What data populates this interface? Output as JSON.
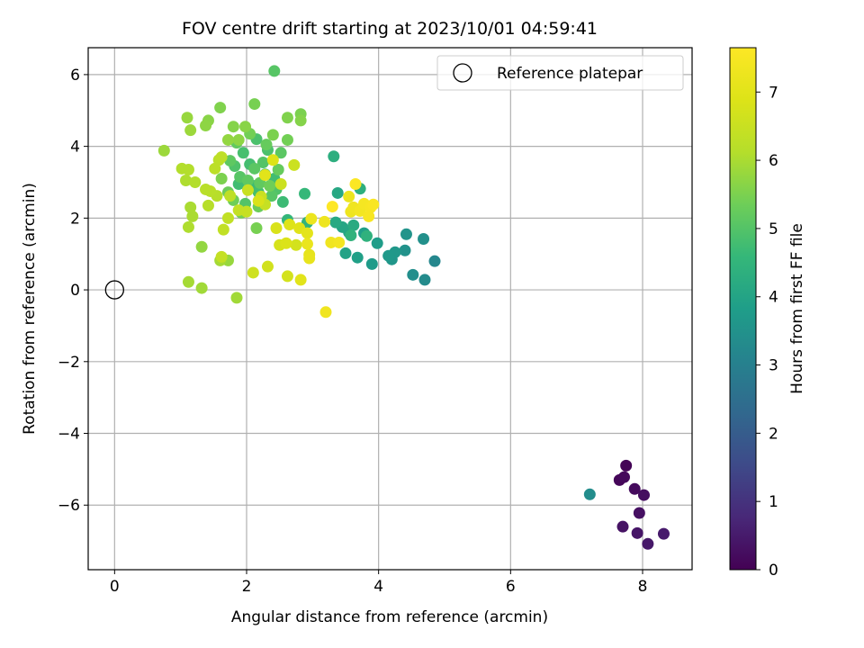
{
  "chart_data": {
    "type": "scatter",
    "title": "FOV centre drift starting at 2023/10/01 04:59:41",
    "xlabel": "Angular distance from reference (arcmin)",
    "ylabel": "Rotation from reference (arcmin)",
    "xlim": [
      -0.4,
      8.75
    ],
    "ylim": [
      -7.8,
      6.75
    ],
    "xticks": [
      0,
      2,
      4,
      6,
      8
    ],
    "yticks": [
      -6,
      -4,
      -2,
      0,
      2,
      4,
      6
    ],
    "xtick_labels": [
      "0",
      "2",
      "4",
      "6",
      "8"
    ],
    "ytick_labels": [
      "−6",
      "−4",
      "−2",
      "0",
      "2",
      "4",
      "6"
    ],
    "grid": true,
    "legend": {
      "position": "top-right",
      "entries": [
        "Reference platepar"
      ]
    },
    "colorbar": {
      "label": "Hours from first FF file",
      "colormap": "viridis",
      "range": [
        0,
        7.65
      ],
      "ticks": [
        0,
        1,
        2,
        3,
        4,
        5,
        6,
        7
      ],
      "tick_labels": [
        "0",
        "1",
        "2",
        "3",
        "4",
        "5",
        "6",
        "7"
      ]
    },
    "series": [
      {
        "name": "Reference platepar",
        "marker": "open-circle",
        "points": [
          [
            0,
            0
          ]
        ]
      },
      {
        "marker": "filled-circle",
        "colored_by": "Hours from first FF file",
        "points": [
          [
            7.75,
            -4.9,
            0.05
          ],
          [
            7.65,
            -5.3,
            0.1
          ],
          [
            7.72,
            -5.22,
            0.15
          ],
          [
            7.88,
            -5.55,
            0.2
          ],
          [
            8.02,
            -5.72,
            0.25
          ],
          [
            7.95,
            -6.22,
            0.3
          ],
          [
            7.7,
            -6.6,
            0.35
          ],
          [
            7.92,
            -6.78,
            0.4
          ],
          [
            8.08,
            -7.08,
            0.45
          ],
          [
            8.32,
            -6.8,
            0.5
          ],
          [
            7.2,
            -5.7,
            3.35
          ],
          [
            4.85,
            0.8,
            3.2
          ],
          [
            4.7,
            0.28,
            3.3
          ],
          [
            4.52,
            0.42,
            3.4
          ],
          [
            4.68,
            1.42,
            3.45
          ],
          [
            4.4,
            1.1,
            3.5
          ],
          [
            4.42,
            1.55,
            3.55
          ],
          [
            4.2,
            0.85,
            3.6
          ],
          [
            4.25,
            1.05,
            3.65
          ],
          [
            4.15,
            0.95,
            3.7
          ],
          [
            3.9,
            0.72,
            3.75
          ],
          [
            3.98,
            1.3,
            3.8
          ],
          [
            3.78,
            1.58,
            3.85
          ],
          [
            3.68,
            0.9,
            3.9
          ],
          [
            3.5,
            1.02,
            3.95
          ],
          [
            3.55,
            1.6,
            4.0
          ],
          [
            3.45,
            1.75,
            4.05
          ],
          [
            3.38,
            2.7,
            4.1
          ],
          [
            3.35,
            1.88,
            4.15
          ],
          [
            3.62,
            1.8,
            4.2
          ],
          [
            3.32,
            3.72,
            4.3
          ],
          [
            3.72,
            2.82,
            4.35
          ],
          [
            3.82,
            1.5,
            4.4
          ],
          [
            3.58,
            1.52,
            4.45
          ],
          [
            2.92,
            1.88,
            4.45
          ],
          [
            2.62,
            1.95,
            4.55
          ],
          [
            2.88,
            2.68,
            4.6
          ],
          [
            2.22,
            2.55,
            4.65
          ],
          [
            2.55,
            2.45,
            4.7
          ],
          [
            2.1,
            2.9,
            4.7
          ],
          [
            1.88,
            2.95,
            4.75
          ],
          [
            2.42,
            3.1,
            4.75
          ],
          [
            2.18,
            2.72,
            4.8
          ],
          [
            2.05,
            3.5,
            4.8
          ],
          [
            2.28,
            3.22,
            4.85
          ],
          [
            1.95,
            3.82,
            4.85
          ],
          [
            2.32,
            3.9,
            4.9
          ],
          [
            2.15,
            4.2,
            4.9
          ],
          [
            1.82,
            3.45,
            4.95
          ],
          [
            2.45,
            2.8,
            4.95
          ],
          [
            2.25,
            3.55,
            5.0
          ],
          [
            1.98,
            2.4,
            5.0
          ],
          [
            2.38,
            2.62,
            5.05
          ],
          [
            1.9,
            3.15,
            5.05
          ],
          [
            2.12,
            3.38,
            5.1
          ],
          [
            2.52,
            3.82,
            5.1
          ],
          [
            1.75,
            3.6,
            5.15
          ],
          [
            2.02,
            3.05,
            5.15
          ],
          [
            2.2,
            2.98,
            5.2
          ],
          [
            1.85,
            4.1,
            5.2
          ],
          [
            2.48,
            3.35,
            5.25
          ],
          [
            2.3,
            4.05,
            5.25
          ],
          [
            1.72,
            2.72,
            5.3
          ],
          [
            2.18,
            2.32,
            5.3
          ],
          [
            1.8,
            2.5,
            5.35
          ],
          [
            2.35,
            2.9,
            5.35
          ],
          [
            2.62,
            4.18,
            5.4
          ],
          [
            2.05,
            4.35,
            5.4
          ],
          [
            1.92,
            2.15,
            5.45
          ],
          [
            2.15,
            1.72,
            5.45
          ],
          [
            2.4,
            4.32,
            5.5
          ],
          [
            1.62,
            3.1,
            5.5
          ],
          [
            2.42,
            6.1,
            5.05
          ],
          [
            2.12,
            5.18,
            5.45
          ],
          [
            2.82,
            4.9,
            5.5
          ],
          [
            1.6,
            5.08,
            5.55
          ],
          [
            2.62,
            4.8,
            5.55
          ],
          [
            2.82,
            4.72,
            5.6
          ],
          [
            1.8,
            4.55,
            5.6
          ],
          [
            1.98,
            4.55,
            5.65
          ],
          [
            1.42,
            4.72,
            5.65
          ],
          [
            1.38,
            4.58,
            5.7
          ],
          [
            1.88,
            4.18,
            5.7
          ],
          [
            1.72,
            4.18,
            5.75
          ],
          [
            1.32,
            1.2,
            5.75
          ],
          [
            1.72,
            0.82,
            5.8
          ],
          [
            1.1,
            4.8,
            5.8
          ],
          [
            1.15,
            4.45,
            5.85
          ],
          [
            0.75,
            3.88,
            5.85
          ],
          [
            1.32,
            0.05,
            5.9
          ],
          [
            1.85,
            -0.22,
            5.9
          ],
          [
            1.12,
            0.22,
            5.95
          ],
          [
            1.6,
            0.82,
            5.95
          ],
          [
            1.18,
            2.05,
            6.0
          ],
          [
            1.15,
            2.3,
            6.0
          ],
          [
            1.12,
            1.75,
            6.05
          ],
          [
            1.08,
            3.05,
            6.05
          ],
          [
            1.02,
            3.38,
            6.1
          ],
          [
            1.12,
            3.35,
            6.1
          ],
          [
            1.22,
            3.0,
            6.1
          ],
          [
            1.42,
            2.35,
            6.15
          ],
          [
            1.55,
            2.62,
            6.15
          ],
          [
            1.45,
            2.75,
            6.2
          ],
          [
            1.38,
            2.8,
            6.2
          ],
          [
            1.52,
            3.38,
            6.25
          ],
          [
            1.58,
            3.62,
            6.25
          ],
          [
            1.62,
            3.7,
            6.3
          ],
          [
            1.75,
            2.62,
            6.3
          ],
          [
            1.72,
            2.0,
            6.35
          ],
          [
            1.65,
            1.68,
            6.35
          ],
          [
            1.62,
            0.92,
            6.4
          ],
          [
            1.88,
            2.22,
            6.4
          ],
          [
            2.0,
            2.18,
            6.45
          ],
          [
            2.28,
            2.38,
            6.45
          ],
          [
            2.02,
            2.78,
            6.5
          ],
          [
            2.22,
            2.6,
            6.5
          ],
          [
            2.52,
            2.95,
            6.55
          ],
          [
            2.72,
            3.48,
            6.55
          ],
          [
            2.1,
            0.48,
            6.6
          ],
          [
            2.32,
            0.65,
            6.65
          ],
          [
            2.62,
            0.38,
            6.7
          ],
          [
            2.75,
            1.25,
            6.7
          ],
          [
            2.5,
            1.25,
            6.75
          ],
          [
            2.45,
            1.72,
            6.8
          ],
          [
            2.6,
            1.3,
            6.85
          ],
          [
            2.65,
            1.82,
            6.9
          ],
          [
            2.8,
            1.72,
            6.95
          ],
          [
            2.82,
            0.28,
            7.0
          ],
          [
            2.92,
            1.58,
            7.05
          ],
          [
            2.95,
            0.98,
            7.1
          ],
          [
            2.95,
            0.88,
            7.15
          ],
          [
            2.92,
            1.28,
            7.2
          ],
          [
            2.98,
            1.98,
            7.25
          ],
          [
            3.18,
            1.9,
            7.3
          ],
          [
            3.2,
            -0.62,
            7.35
          ],
          [
            3.28,
            1.32,
            7.35
          ],
          [
            3.4,
            1.32,
            7.4
          ],
          [
            3.55,
            2.6,
            7.25
          ],
          [
            3.58,
            2.18,
            7.3
          ],
          [
            3.62,
            2.3,
            7.35
          ],
          [
            3.72,
            2.2,
            7.4
          ],
          [
            3.78,
            2.4,
            7.45
          ],
          [
            3.85,
            2.05,
            7.5
          ],
          [
            3.88,
            2.3,
            7.5
          ],
          [
            3.92,
            2.38,
            7.55
          ],
          [
            3.65,
            2.95,
            7.6
          ],
          [
            3.3,
            2.32,
            7.65
          ],
          [
            2.28,
            3.2,
            7.0
          ],
          [
            2.4,
            3.62,
            6.9
          ],
          [
            2.18,
            2.48,
            6.8
          ]
        ]
      }
    ]
  }
}
